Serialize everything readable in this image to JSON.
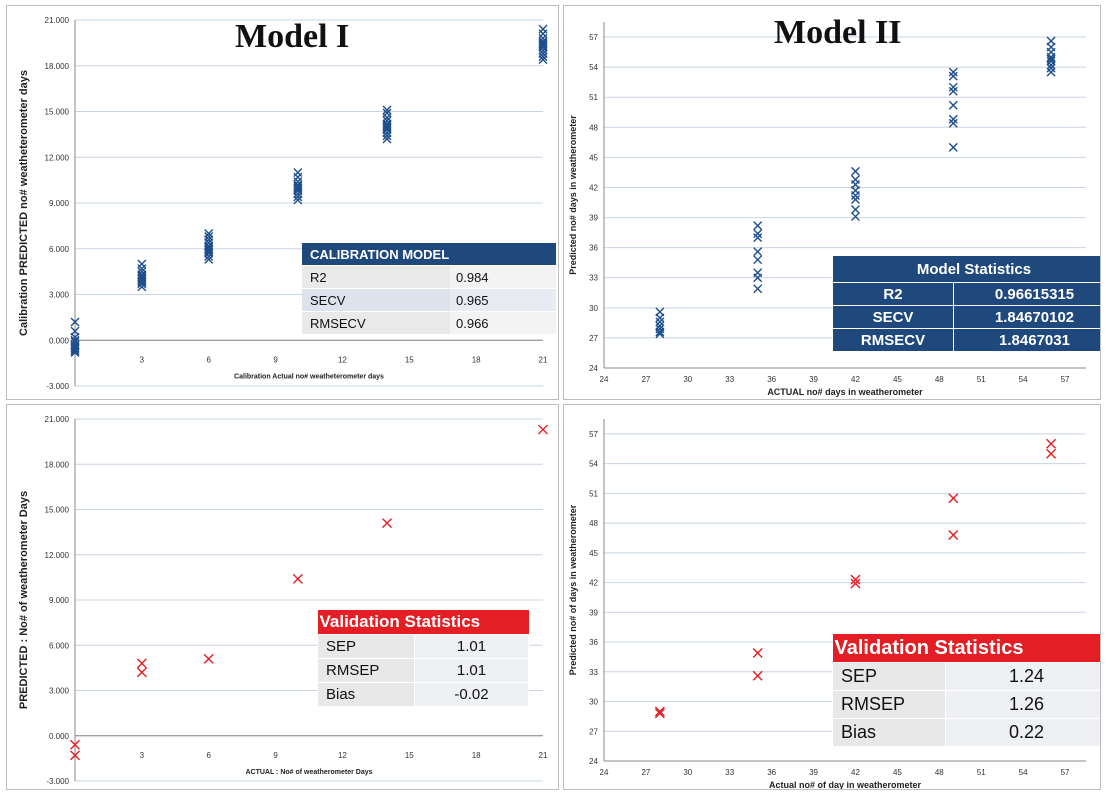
{
  "chart_data": [
    {
      "type": "scatter",
      "title": "Model I",
      "xlabel": "Calibration  Actual no# weatheterometer days",
      "ylabel": "Calibration PREDICTED no# weatheterometer days",
      "xlim": [
        0,
        21
      ],
      "ylim": [
        -3,
        21
      ],
      "xticks": [
        3,
        6,
        9,
        12,
        15,
        18,
        21
      ],
      "yticks": [
        -3,
        0,
        3,
        6,
        9,
        12,
        15,
        18,
        21
      ],
      "ytick_labels": [
        "-3.000",
        "0.000",
        "3.000",
        "6.000",
        "9.000",
        "12.000",
        "15.000",
        "18.000",
        "21.000"
      ],
      "marker": "x",
      "marker_color": "#1f4e8c",
      "series": [
        {
          "x": [
            0,
            0,
            0,
            0,
            0,
            0,
            0,
            0,
            0,
            0,
            0,
            0,
            3,
            3,
            3,
            3,
            3,
            3,
            3,
            3,
            3,
            3,
            3,
            6,
            6,
            6,
            6,
            6,
            6,
            6,
            6,
            6,
            6,
            6,
            6,
            10,
            10,
            10,
            10,
            10,
            10,
            10,
            10,
            10,
            10,
            10,
            14,
            14,
            14,
            14,
            14,
            14,
            14,
            14,
            14,
            14,
            14,
            14,
            21,
            21,
            21,
            21,
            21,
            21,
            21,
            21,
            21,
            21,
            21,
            21
          ],
          "y": [
            1.2,
            0.6,
            0.2,
            -0.1,
            -0.3,
            -0.4,
            -0.5,
            -0.6,
            -0.7,
            -0.8,
            -0.3,
            0.0,
            5.0,
            4.7,
            4.5,
            4.3,
            4.1,
            3.9,
            3.8,
            3.7,
            3.5,
            4.0,
            4.2,
            7.0,
            6.8,
            6.6,
            6.4,
            6.2,
            6.0,
            5.9,
            5.7,
            5.5,
            5.3,
            6.1,
            5.8,
            11.0,
            10.7,
            10.4,
            10.2,
            10.0,
            9.8,
            9.6,
            9.4,
            9.2,
            10.1,
            9.9,
            15.1,
            14.9,
            14.6,
            14.4,
            14.2,
            14.0,
            13.8,
            13.6,
            13.4,
            13.2,
            14.1,
            13.9,
            20.4,
            20.1,
            19.8,
            19.6,
            19.4,
            19.2,
            19.0,
            18.8,
            18.6,
            18.4,
            19.5,
            19.3
          ]
        }
      ],
      "stats_table": {
        "header": "CALIBRATION MODEL",
        "rows": [
          {
            "label": "R2",
            "value": "0.984"
          },
          {
            "label": "SECV",
            "value": "0.965"
          },
          {
            "label": "RMSECV",
            "value": "0.966"
          }
        ]
      }
    },
    {
      "type": "scatter",
      "title": "Model II",
      "xlabel": "ACTUAL no# days in weatherometer",
      "ylabel": "Predicted no# days in weatherometer",
      "xlim": [
        24,
        58.5
      ],
      "ylim": [
        24,
        58.5
      ],
      "xticks": [
        24,
        27,
        30,
        33,
        36,
        39,
        42,
        45,
        48,
        51,
        54,
        57
      ],
      "yticks": [
        24,
        27,
        30,
        33,
        36,
        39,
        42,
        45,
        48,
        51,
        54,
        57
      ],
      "marker": "x",
      "marker_color": "#1f4e8c",
      "series": [
        {
          "x": [
            28,
            28,
            28,
            28,
            28,
            28,
            28,
            35,
            35,
            35,
            35,
            35,
            35,
            35,
            35,
            42,
            42,
            42,
            42,
            42,
            42,
            42,
            42,
            49,
            49,
            49,
            49,
            49,
            49,
            49,
            49,
            56,
            56,
            56,
            56,
            56,
            56,
            56,
            56,
            56
          ],
          "y": [
            29.6,
            29.0,
            28.6,
            28.2,
            27.9,
            27.6,
            27.4,
            38.2,
            37.4,
            37.0,
            35.6,
            34.8,
            33.5,
            33.0,
            31.9,
            43.6,
            42.8,
            42.3,
            41.7,
            41.2,
            40.8,
            39.8,
            39.1,
            53.5,
            53.1,
            52.0,
            51.6,
            50.2,
            48.8,
            48.4,
            46.0,
            56.6,
            56.0,
            55.5,
            55.0,
            54.6,
            54.2,
            53.9,
            53.5,
            54.8
          ]
        }
      ],
      "stats_table": {
        "header": "Model Statistics",
        "rows": [
          {
            "label": "R2",
            "value": "0.96615315"
          },
          {
            "label": "SECV",
            "value": "1.84670102"
          },
          {
            "label": "RMSECV",
            "value": "1.8467031"
          }
        ]
      }
    },
    {
      "type": "scatter",
      "title": "",
      "xlabel": "ACTUAL : No# of weatherometer Days",
      "ylabel": "PREDICTED : No# of weatherometer Days",
      "xlim": [
        0,
        21
      ],
      "ylim": [
        -3,
        21
      ],
      "xticks": [
        3,
        6,
        9,
        12,
        15,
        18,
        21
      ],
      "yticks": [
        -3,
        0,
        3,
        6,
        9,
        12,
        15,
        18,
        21
      ],
      "ytick_labels": [
        "-3.000",
        "0.000",
        "3.000",
        "6.000",
        "9.000",
        "12.000",
        "15.000",
        "18.000",
        "21.000"
      ],
      "marker": "x",
      "marker_color": "#e31e24",
      "series": [
        {
          "x": [
            0,
            0,
            3,
            3,
            6,
            10,
            14,
            21
          ],
          "y": [
            -0.6,
            -1.3,
            4.8,
            4.2,
            5.1,
            10.4,
            14.1,
            20.3
          ]
        }
      ],
      "stats_table": {
        "header": "Validation Statistics",
        "rows": [
          {
            "label": "SEP",
            "value": "1.01"
          },
          {
            "label": "RMSEP",
            "value": "1.01"
          },
          {
            "label": "Bias",
            "value": "-0.02"
          }
        ]
      }
    },
    {
      "type": "scatter",
      "title": "",
      "xlabel": "Actual no# of day in weatherometer",
      "ylabel": "Predicted no# of days in weatherometer",
      "xlim": [
        24,
        58.5
      ],
      "ylim": [
        24,
        58.5
      ],
      "xticks": [
        24,
        27,
        30,
        33,
        36,
        39,
        42,
        45,
        48,
        51,
        54,
        57
      ],
      "yticks": [
        24,
        27,
        30,
        33,
        36,
        39,
        42,
        45,
        48,
        51,
        54,
        57
      ],
      "marker": "x",
      "marker_color": "#e31e24",
      "series": [
        {
          "x": [
            28,
            28,
            35,
            35,
            42,
            42,
            49,
            49,
            56,
            56
          ],
          "y": [
            29.0,
            28.8,
            34.9,
            32.6,
            42.3,
            41.9,
            50.5,
            46.8,
            56.0,
            55.0
          ]
        }
      ],
      "stats_table": {
        "header": "Validation Statistics",
        "rows": [
          {
            "label": "SEP",
            "value": "1.24"
          },
          {
            "label": "RMSEP",
            "value": "1.26"
          },
          {
            "label": "Bias",
            "value": "0.22"
          }
        ]
      }
    }
  ]
}
